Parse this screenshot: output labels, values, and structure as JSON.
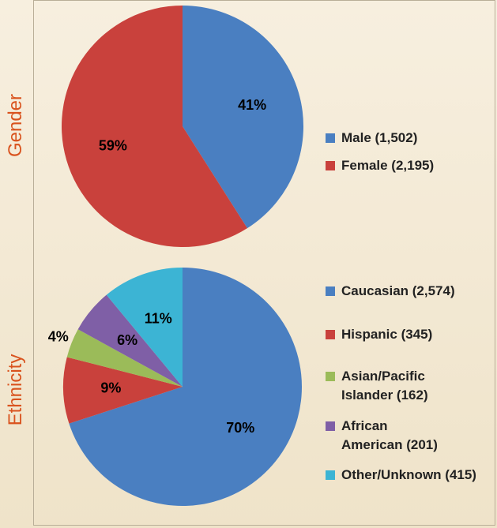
{
  "chart_data": [
    {
      "type": "pie",
      "title": "Gender",
      "categories": [
        "Male (1,502)",
        "Female (2,195)"
      ],
      "values": [
        41,
        59
      ],
      "value_labels": [
        "41%",
        "59%"
      ],
      "colors": [
        "#4a7fc1",
        "#c9413c"
      ]
    },
    {
      "type": "pie",
      "title": "Ethnicity",
      "categories": [
        "Caucasian (2,574)",
        "Hispanic (345)",
        "Asian/Pacific\nIslander (162)",
        "African\nAmerican (201)",
        "Other/Unknown (415)"
      ],
      "values": [
        70,
        9,
        4,
        6,
        11
      ],
      "value_labels": [
        "70%",
        "9%",
        "4%",
        "6%",
        "11%"
      ],
      "colors": [
        "#4a7fc1",
        "#c9413c",
        "#9bbb59",
        "#7f5fa6",
        "#3cb4d4"
      ]
    }
  ]
}
